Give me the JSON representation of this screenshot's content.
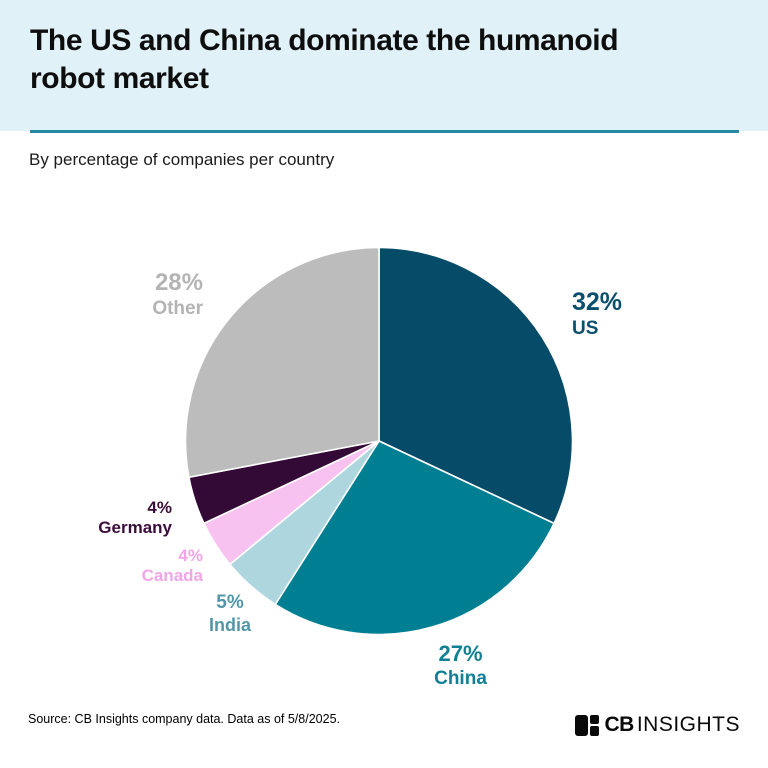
{
  "header": {
    "title": "The US and China dominate the humanoid robot market",
    "title_lines": [
      "The US and China dominate the humanoid",
      "robot market"
    ],
    "subtitle": "By percentage of companies per country",
    "accent_color": "#2389a3",
    "background_color": "#e1f1f8"
  },
  "chart_data": {
    "type": "pie",
    "title": "The US and China dominate the humanoid robot market",
    "subtitle": "By percentage of companies per country",
    "unit": "percent of companies",
    "start_angle_deg": 0,
    "direction": "clockwise",
    "slices": [
      {
        "country": "US",
        "value": 32,
        "pct_label": "32%",
        "color": "#064b67",
        "label_color": "#0b4f6e"
      },
      {
        "country": "China",
        "value": 27,
        "pct_label": "27%",
        "color": "#007f93",
        "label_color": "#128094"
      },
      {
        "country": "India",
        "value": 5,
        "pct_label": "5%",
        "color": "#aed6de",
        "label_color": "#5197a9"
      },
      {
        "country": "Canada",
        "value": 4,
        "pct_label": "4%",
        "color": "#f7c2ef",
        "label_color": "#f0a6e6"
      },
      {
        "country": "Germany",
        "value": 4,
        "pct_label": "4%",
        "color": "#330936",
        "label_color": "#3a0d3a"
      },
      {
        "country": "Other",
        "value": 28,
        "pct_label": "28%",
        "color": "#bcbcbc",
        "label_color": "#b4b4b4"
      }
    ]
  },
  "footer": {
    "source": "Source: CB Insights company data. Data as of 5/8/2025.",
    "logo_cb": "CB",
    "logo_insights": "INSIGHTS"
  }
}
